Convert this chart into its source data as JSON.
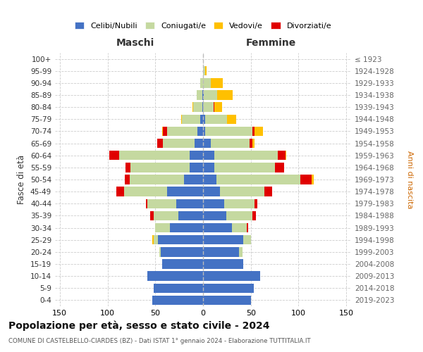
{
  "age_groups": [
    "0-4",
    "5-9",
    "10-14",
    "15-19",
    "20-24",
    "25-29",
    "30-34",
    "35-39",
    "40-44",
    "45-49",
    "50-54",
    "55-59",
    "60-64",
    "65-69",
    "70-74",
    "75-79",
    "80-84",
    "85-89",
    "90-94",
    "95-99",
    "100+"
  ],
  "birth_years": [
    "2019-2023",
    "2014-2018",
    "2009-2013",
    "2004-2008",
    "1999-2003",
    "1994-1998",
    "1989-1993",
    "1984-1988",
    "1979-1983",
    "1974-1978",
    "1969-1973",
    "1964-1968",
    "1959-1963",
    "1954-1958",
    "1949-1953",
    "1944-1948",
    "1939-1943",
    "1934-1938",
    "1929-1933",
    "1924-1928",
    "≤ 1923"
  ],
  "colors": {
    "celibi": "#4472c4",
    "coniugati": "#c5d9a0",
    "vedovi": "#ffc000",
    "divorziati": "#e00000"
  },
  "maschi": {
    "celibi": [
      53,
      52,
      58,
      43,
      44,
      47,
      35,
      26,
      28,
      38,
      20,
      14,
      14,
      9,
      6,
      3,
      1,
      1,
      0,
      0,
      0
    ],
    "coniugati": [
      0,
      0,
      0,
      0,
      2,
      5,
      15,
      26,
      30,
      45,
      57,
      62,
      74,
      33,
      32,
      19,
      9,
      6,
      3,
      0,
      0
    ],
    "vedovi": [
      0,
      0,
      0,
      0,
      0,
      1,
      0,
      0,
      0,
      0,
      0,
      0,
      0,
      0,
      1,
      1,
      1,
      0,
      0,
      0,
      0
    ],
    "divorziati": [
      0,
      0,
      0,
      0,
      0,
      0,
      0,
      3,
      2,
      8,
      5,
      5,
      10,
      6,
      4,
      0,
      0,
      0,
      0,
      0,
      0
    ]
  },
  "femmine": {
    "celibi": [
      50,
      53,
      60,
      42,
      38,
      42,
      30,
      24,
      22,
      18,
      14,
      12,
      12,
      8,
      2,
      2,
      0,
      1,
      0,
      0,
      0
    ],
    "coniugati": [
      0,
      0,
      0,
      0,
      3,
      8,
      16,
      28,
      32,
      46,
      88,
      63,
      66,
      41,
      50,
      23,
      11,
      14,
      8,
      2,
      0
    ],
    "vedovi": [
      0,
      0,
      0,
      0,
      0,
      0,
      0,
      0,
      0,
      0,
      2,
      0,
      1,
      2,
      9,
      10,
      8,
      16,
      13,
      2,
      0
    ],
    "divorziati": [
      0,
      0,
      0,
      0,
      0,
      0,
      1,
      3,
      3,
      8,
      12,
      10,
      8,
      3,
      2,
      0,
      1,
      0,
      0,
      0,
      0
    ]
  },
  "title": "Popolazione per età, sesso e stato civile - 2024",
  "subtitle": "COMUNE DI CASTELBELLO-CIARDES (BZ) - Dati ISTAT 1° gennaio 2024 - Elaborazione TUTTITALIA.IT",
  "xlabel_left": "Maschi",
  "xlabel_right": "Femmine",
  "ylabel_left": "Fasce di età",
  "ylabel_right": "Anni di nascita",
  "xlim": 155,
  "legend_labels": [
    "Celibi/Nubili",
    "Coniugati/e",
    "Vedovi/e",
    "Divorziati/e"
  ],
  "bg_color": "#ffffff",
  "grid_color": "#cccccc"
}
